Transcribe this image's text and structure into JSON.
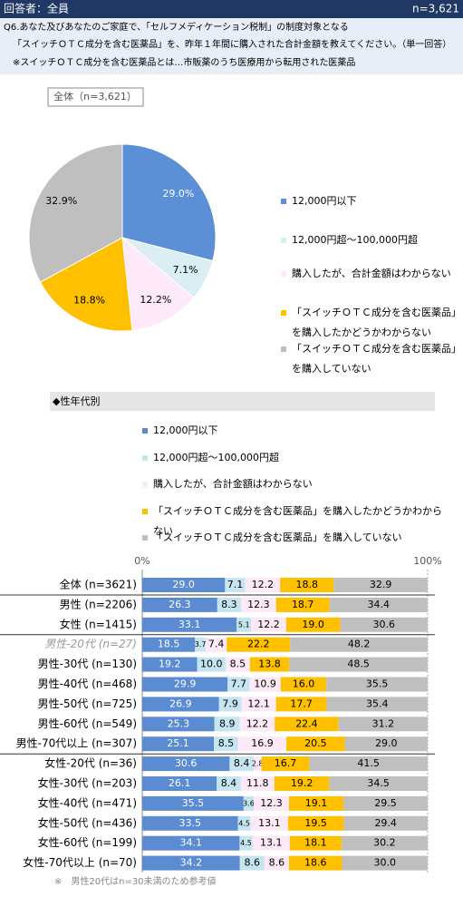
{
  "header": {
    "respondents": "回答者：全員",
    "n": "n=3,621",
    "question": [
      "Q6.あなた及びあなたのご家庭で、「セルフメディケーション税制」の制度対象となる",
      "「スイッチＯＴＣ成分を含む医薬品」を、昨年１年間に購入された合計金額を教えてください。（単一回答）",
      "※スイッチＯＴＣ成分を含む医薬品とは…市販薬のうち医療用から転用された医薬品"
    ]
  },
  "chart_data": [
    {
      "type": "pie",
      "title": "全体（n=3,621）",
      "categories": [
        "12,000円以下",
        "12,000円超～100,000円超",
        "購入したが、合計金額はわからない",
        "「スイッチＯＴＣ成分を含む医薬品」を購入したかどうかわからない",
        "「スイッチＯＴＣ成分を含む医薬品」を購入していない"
      ],
      "values": [
        29.0,
        7.1,
        12.2,
        18.8,
        32.9
      ],
      "value_labels": [
        "29.0%",
        "7.1%",
        "12.2%",
        "18.8%",
        "32.9%"
      ],
      "colors": [
        "#5b8fd6",
        "#daeef3",
        "#fde9f7",
        "#ffc000",
        "#bfbfbf"
      ]
    },
    {
      "type": "bar",
      "title": "◆性年代別",
      "orientation": "horizontal",
      "stacked": true,
      "categories": [
        "全体 (n=3621)",
        "男性 (n=2206)",
        "女性 (n=1415)",
        "男性-20代 (n=27)",
        "男性-30代 (n=130)",
        "男性-40代 (n=468)",
        "男性-50代 (n=725)",
        "男性-60代 (n=549)",
        "男性-70代以上 (n=307)",
        "女性-20代 (n=36)",
        "女性-30代 (n=203)",
        "女性-40代 (n=471)",
        "女性-50代 (n=436)",
        "女性-60代 (n=199)",
        "女性-70代以上 (n=70)"
      ],
      "series": [
        {
          "name": "12,000円以下",
          "color": "#5b8bd0",
          "values": [
            29.0,
            26.3,
            33.1,
            18.5,
            19.2,
            29.9,
            26.9,
            25.3,
            25.1,
            30.6,
            26.1,
            35.5,
            33.5,
            34.1,
            34.2
          ],
          "value_labels": [
            "29.0",
            "26.3",
            "33.1",
            "18.5",
            "19.2",
            "29.9",
            "26.9",
            "25.3",
            "25.1",
            "30.6",
            "26.1",
            "35.5",
            "33.5",
            "34.1",
            "34.2"
          ]
        },
        {
          "name": "12,000円超～100,000円超",
          "color": "#c5e6f0",
          "values": [
            7.1,
            8.3,
            5.1,
            3.7,
            10.0,
            7.7,
            7.9,
            8.9,
            8.5,
            8.4,
            8.4,
            3.6,
            4.5,
            4.5,
            8.6
          ],
          "value_labels": [
            "7.1",
            "8.3",
            "5.1",
            "3.7",
            "10.0",
            "7.7",
            "7.9",
            "8.9",
            "8.5",
            "8.4",
            "8.4",
            "3.6",
            "4.5",
            "4.5",
            "8.6"
          ]
        },
        {
          "name": "購入したが、合計金額はわからない",
          "color": "#fde9f7",
          "values": [
            12.2,
            12.3,
            12.2,
            7.4,
            8.5,
            10.9,
            12.1,
            12.2,
            16.9,
            2.8,
            11.8,
            12.3,
            13.1,
            13.1,
            8.6
          ],
          "value_labels": [
            "12.2",
            "12.3",
            "12.2",
            "7.4",
            "8.5",
            "10.9",
            "12.1",
            "12.2",
            "16.9",
            "2.8",
            "11.8",
            "12.3",
            "13.1",
            "13.1",
            "8.6"
          ]
        },
        {
          "name": "「スイッチＯＴＣ成分を含む医薬品」を購入したかどうかわからない",
          "color": "#ffc000",
          "values": [
            18.8,
            18.7,
            19.0,
            22.2,
            13.8,
            16.0,
            17.7,
            22.4,
            20.5,
            16.7,
            19.2,
            19.1,
            19.5,
            18.1,
            18.6
          ],
          "value_labels": [
            "18.8",
            "18.7",
            "19.0",
            "22.2",
            "13.8",
            "16.0",
            "17.7",
            "22.4",
            "20.5",
            "16.7",
            "19.2",
            "19.1",
            "19.5",
            "18.1",
            "18.6"
          ]
        },
        {
          "name": "「スイッチＯＴＣ成分を含む医薬品」を購入していない",
          "color": "#bfbfbf",
          "values": [
            32.9,
            34.4,
            30.6,
            48.2,
            48.5,
            35.5,
            35.4,
            31.2,
            29.0,
            41.5,
            34.5,
            29.5,
            29.4,
            30.2,
            30.0
          ],
          "value_labels": [
            "32.9",
            "34.4",
            "30.6",
            "48.2",
            "48.5",
            "35.5",
            "35.4",
            "31.2",
            "29.0",
            "41.5",
            "34.5",
            "29.5",
            "29.4",
            "30.2",
            "30.0"
          ]
        }
      ],
      "xlim": [
        0,
        100
      ],
      "xticks": [
        {
          "value": 0,
          "label": "0%"
        },
        {
          "value": 100,
          "label": "100%"
        }
      ],
      "note": "※　男性20代はn=30未満のため参考値"
    }
  ]
}
